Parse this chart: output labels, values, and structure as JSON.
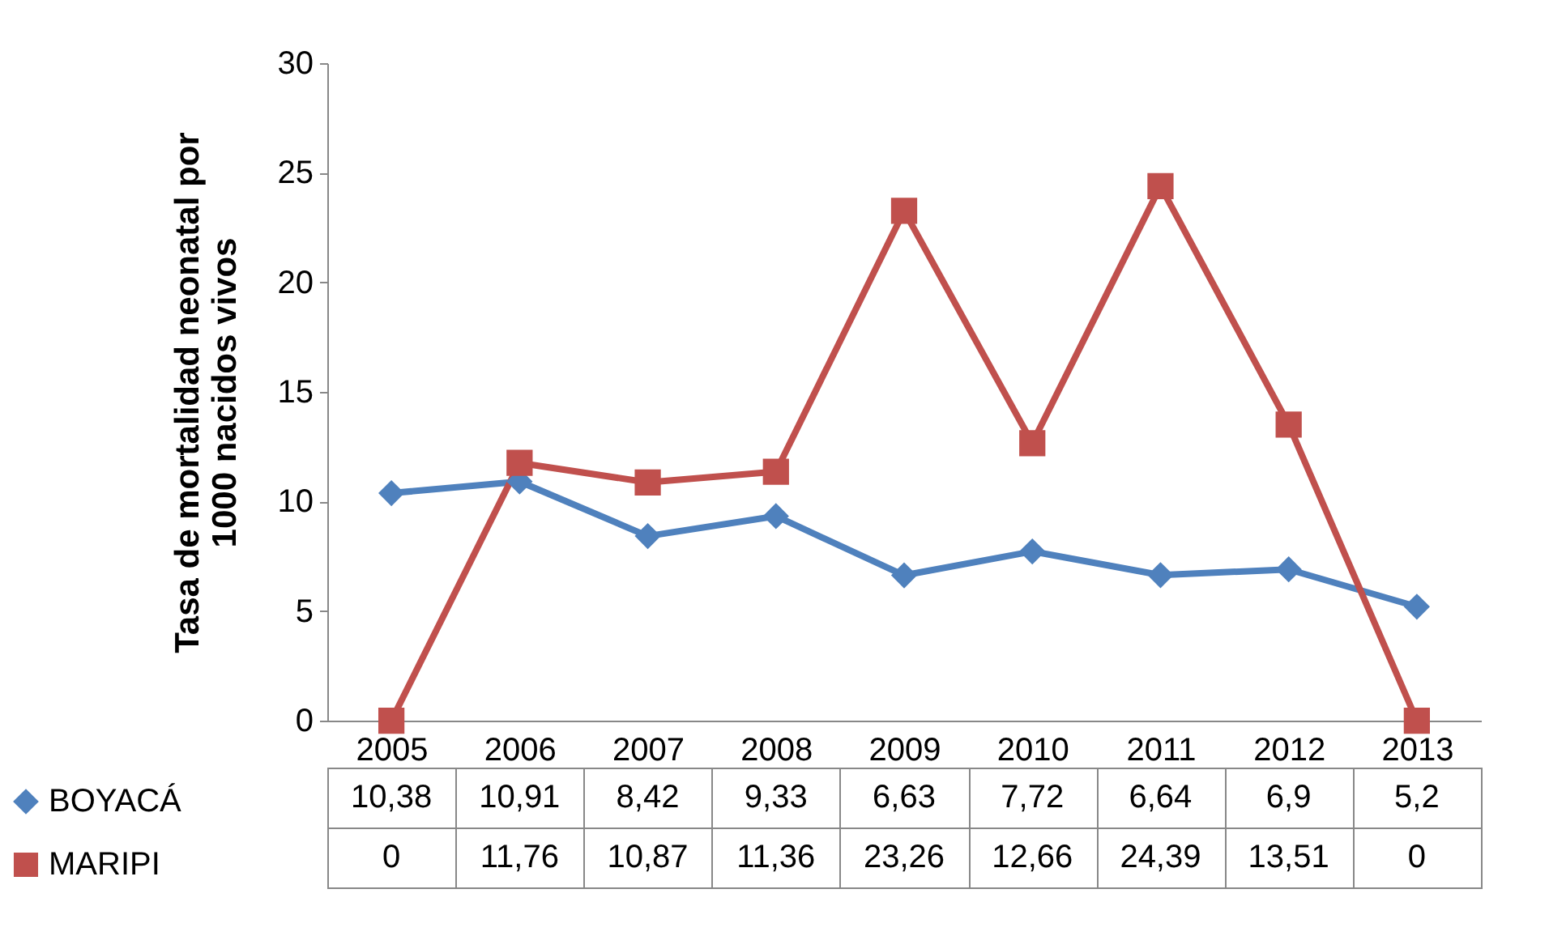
{
  "chart_data": {
    "type": "line",
    "ylabel": "Tasa de mortalidad neonatal por 1000 nacidos vivos",
    "categories": [
      "2005",
      "2006",
      "2007",
      "2008",
      "2009",
      "2010",
      "2011",
      "2012",
      "2013"
    ],
    "series": [
      {
        "name": "BOYACÁ",
        "color": "#4f81bd",
        "marker": "diamond",
        "values": [
          10.38,
          10.91,
          8.42,
          9.33,
          6.63,
          7.72,
          6.64,
          6.9,
          5.2
        ],
        "value_labels": [
          "10,38",
          "10,91",
          "8,42",
          "9,33",
          "6,63",
          "7,72",
          "6,64",
          "6,9",
          "5,2"
        ]
      },
      {
        "name": "MARIPI",
        "color": "#c0504d",
        "marker": "square",
        "values": [
          0,
          11.76,
          10.87,
          11.36,
          23.26,
          12.66,
          24.39,
          13.51,
          0
        ],
        "value_labels": [
          "0",
          "11,76",
          "10,87",
          "11,36",
          "23,26",
          "12,66",
          "24,39",
          "13,51",
          "0"
        ]
      }
    ],
    "ylim": [
      0,
      30
    ],
    "yticks": [
      0,
      5,
      10,
      15,
      20,
      25,
      30
    ],
    "legend": "bottom left"
  }
}
